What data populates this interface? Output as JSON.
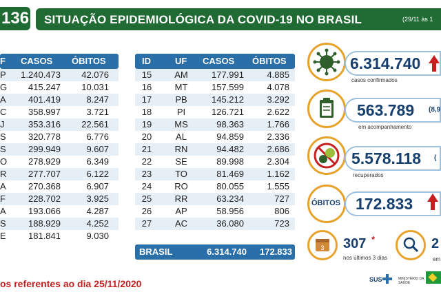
{
  "header": {
    "badge": "136",
    "title": "SITUAÇÃO EPIDEMIOLÓGICA DA COVID-19 NO BRASIL",
    "date": "(29/11 às 1"
  },
  "left_table": {
    "headers": [
      "F",
      "CASOS",
      "ÓBITOS"
    ],
    "rows": [
      {
        "uf": "P",
        "casos": "1.240.473",
        "obitos": "42.076"
      },
      {
        "uf": "G",
        "casos": "415.247",
        "obitos": "10.031"
      },
      {
        "uf": "A",
        "casos": "401.419",
        "obitos": "8.247"
      },
      {
        "uf": "C",
        "casos": "358.997",
        "obitos": "3.721"
      },
      {
        "uf": "J",
        "casos": "353.316",
        "obitos": "22.561"
      },
      {
        "uf": "S",
        "casos": "320.778",
        "obitos": "6.776"
      },
      {
        "uf": "S",
        "casos": "299.949",
        "obitos": "9.607"
      },
      {
        "uf": "O",
        "casos": "278.929",
        "obitos": "6.349"
      },
      {
        "uf": "R",
        "casos": "277.707",
        "obitos": "6.122"
      },
      {
        "uf": "A",
        "casos": "270.368",
        "obitos": "6.907"
      },
      {
        "uf": "F",
        "casos": "228.702",
        "obitos": "3.925"
      },
      {
        "uf": "A",
        "casos": "193.066",
        "obitos": "4.287"
      },
      {
        "uf": "S",
        "casos": "188.929",
        "obitos": "4.252"
      },
      {
        "uf": "E",
        "casos": "181.841",
        "obitos": "9.030"
      }
    ]
  },
  "right_table": {
    "headers": [
      "ID",
      "UF",
      "CASOS",
      "ÓBITOS"
    ],
    "rows": [
      {
        "id": "15",
        "uf": "AM",
        "casos": "177.991",
        "obitos": "4.885"
      },
      {
        "id": "16",
        "uf": "MT",
        "casos": "157.599",
        "obitos": "4.078"
      },
      {
        "id": "17",
        "uf": "PB",
        "casos": "145.212",
        "obitos": "3.292"
      },
      {
        "id": "18",
        "uf": "PI",
        "casos": "126.721",
        "obitos": "2.622"
      },
      {
        "id": "19",
        "uf": "MS",
        "casos": "98.363",
        "obitos": "1.766"
      },
      {
        "id": "20",
        "uf": "AL",
        "casos": "94.859",
        "obitos": "2.336"
      },
      {
        "id": "21",
        "uf": "RN",
        "casos": "94.482",
        "obitos": "2.686"
      },
      {
        "id": "22",
        "uf": "SE",
        "casos": "89.998",
        "obitos": "2.304"
      },
      {
        "id": "23",
        "uf": "TO",
        "casos": "81.469",
        "obitos": "1.162"
      },
      {
        "id": "24",
        "uf": "RO",
        "casos": "80.055",
        "obitos": "1.555"
      },
      {
        "id": "25",
        "uf": "RR",
        "casos": "63.234",
        "obitos": "727"
      },
      {
        "id": "26",
        "uf": "AP",
        "casos": "58.956",
        "obitos": "806"
      },
      {
        "id": "27",
        "uf": "AC",
        "casos": "36.080",
        "obitos": "723"
      }
    ],
    "total": {
      "label": "BRASIL",
      "casos": "6.314.740",
      "obitos": "172.833"
    }
  },
  "footnote": "os referentes ao dia 25/11/2020",
  "cards": {
    "confirmed": {
      "value": "6.314.740",
      "label": "casos confirmados"
    },
    "monitoring": {
      "value": "563.789",
      "suffix": "(8,9",
      "label": "em acompanhamento"
    },
    "recovered": {
      "value": "5.578.118",
      "suffix": "(",
      "label": "recuperados"
    },
    "deaths": {
      "label": "ÓBITOS",
      "value": "172.833"
    },
    "recent": {
      "value": "307",
      "mark": "*",
      "label": "nos últimos 3 dias",
      "calendar": "3"
    },
    "investigation": {
      "value": "2",
      "label": "em"
    }
  },
  "footer": {
    "sus": "SUS",
    "ministry": "MINISTÉRIO DA SAÚDE"
  },
  "colors": {
    "header_green": "#1f6b33",
    "table_blue": "#2a6fa8",
    "number_navy": "#173f6e",
    "alert_red": "#c61f1f",
    "ring_orange": "#e6a22a"
  }
}
